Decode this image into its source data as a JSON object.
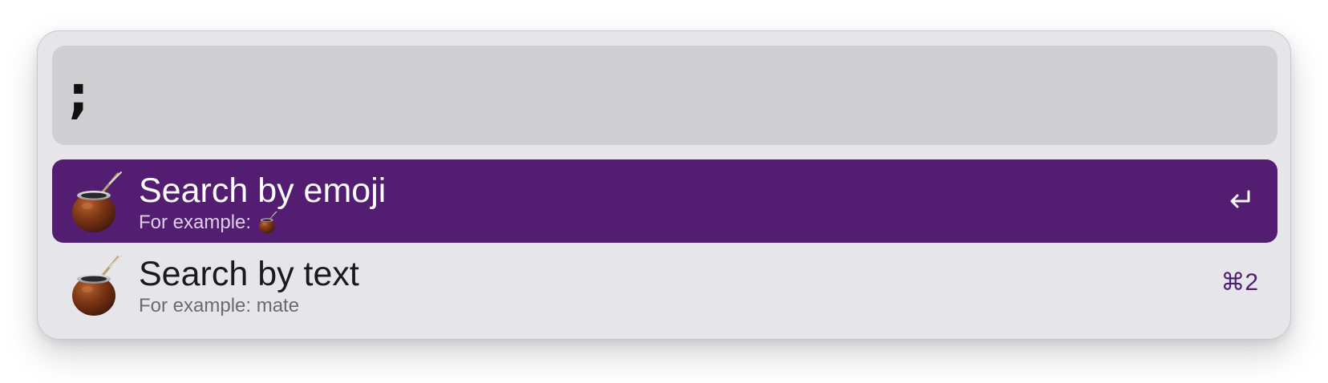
{
  "search": {
    "query": ";"
  },
  "results": [
    {
      "title": "Search by emoji",
      "subtitle_prefix": "For example:",
      "subtitle_value": "",
      "icon": "mate-gourd-icon",
      "action": "return-key-icon",
      "selected": true
    },
    {
      "title": "Search by text",
      "subtitle_prefix": "For example: mate",
      "icon": "mate-gourd-icon",
      "shortcut": "⌘2",
      "selected": false
    }
  ],
  "colors": {
    "window_bg": "#e6e5e9",
    "query_field_bg": "#cfcfd2",
    "selection_bg": "#531e72",
    "shortcut_text": "#4a2170"
  }
}
